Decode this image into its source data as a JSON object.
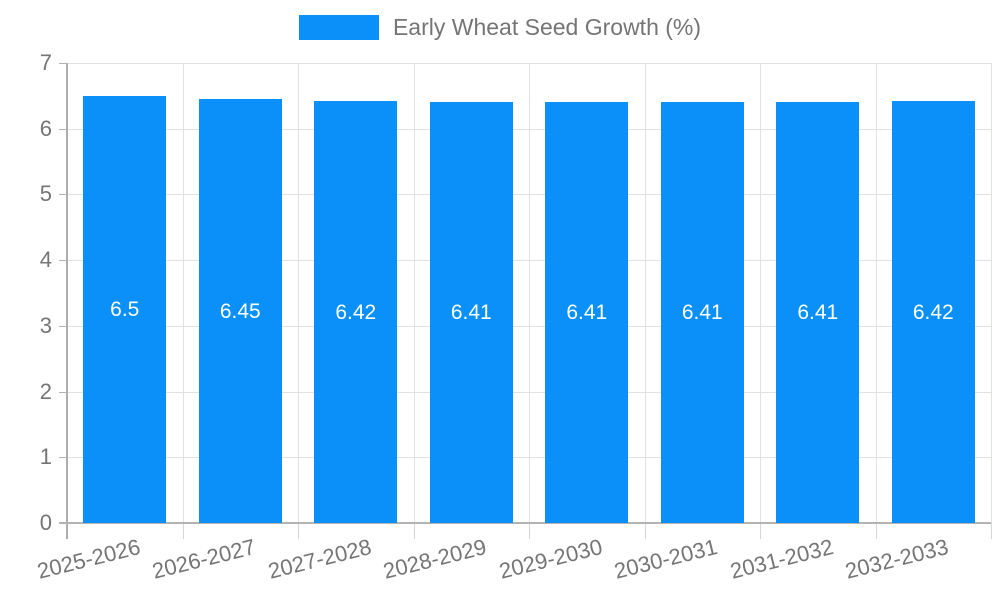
{
  "legend": {
    "label": "Early Wheat Seed Growth (%)"
  },
  "chart_data": {
    "type": "bar",
    "title": "Early Wheat Seed Growth (%)",
    "categories": [
      "2025-2026",
      "2026-2027",
      "2027-2028",
      "2028-2029",
      "2029-2030",
      "2030-2031",
      "2031-2032",
      "2032-2033"
    ],
    "values": [
      6.5,
      6.45,
      6.42,
      6.41,
      6.41,
      6.41,
      6.41,
      6.42
    ],
    "value_labels": [
      "6.5",
      "6.45",
      "6.42",
      "6.41",
      "6.41",
      "6.41",
      "6.41",
      "6.42"
    ],
    "xlabel": "",
    "ylabel": "",
    "ylim": [
      0,
      7
    ],
    "yticks": [
      0,
      1,
      2,
      3,
      4,
      5,
      6,
      7
    ],
    "grid": "horizontal-and-vertical",
    "legend_position": "top-center",
    "bar_color": "#0a90f8",
    "value_label_color": "#ffffff",
    "axis_text_color": "#757575",
    "gridline_color": "#e2e2e2"
  }
}
